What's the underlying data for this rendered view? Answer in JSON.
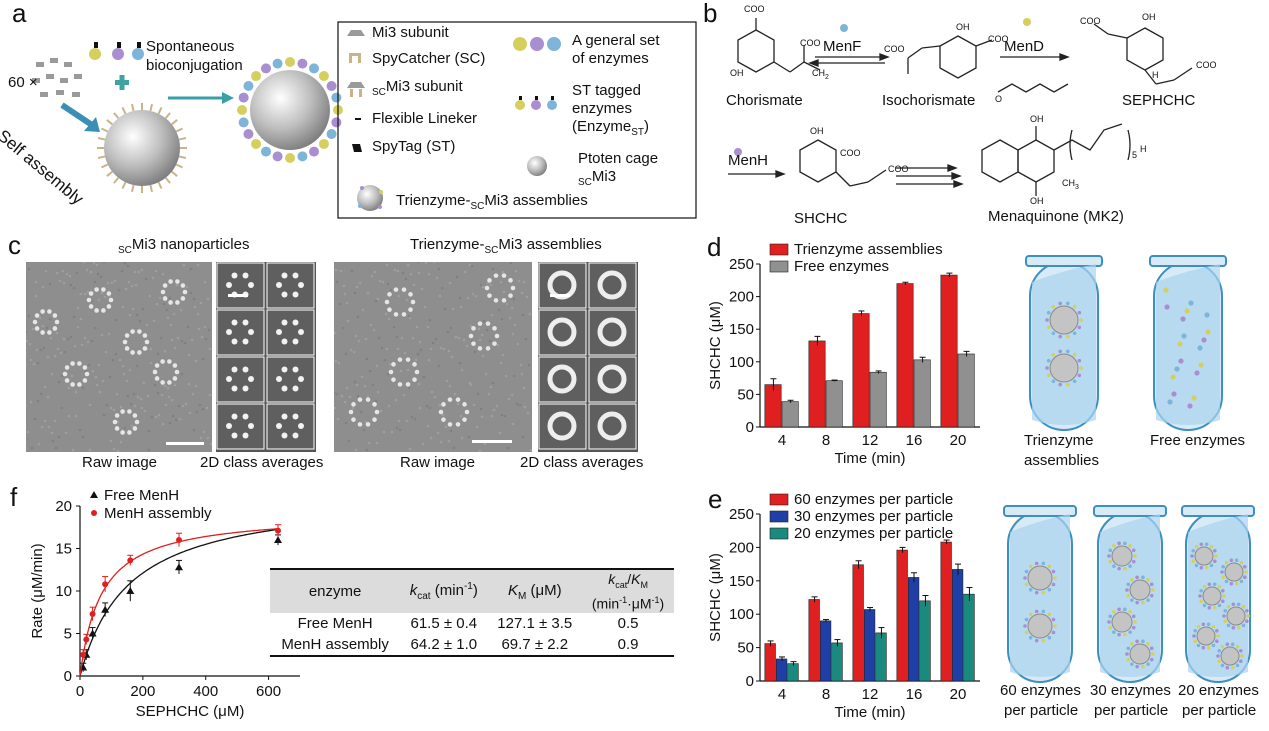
{
  "panel_labels": {
    "a": "a",
    "b": "b",
    "c": "c",
    "d": "d",
    "e": "e",
    "f": "f"
  },
  "panel_a": {
    "count_label": "60 ×",
    "self_assembly": "Self assembly",
    "bioconj_1": "Spontaneous",
    "bioconj_2": "bioconjugation",
    "legend": {
      "mi3_subunit": "Mi3 subunit",
      "spycatcher": "SpyCatcher (SC)",
      "sc_mi3_subunit_pre": "SC",
      "sc_mi3_subunit": "Mi3 subunit",
      "linker": "Flexible Lineker",
      "spytag": "SpyTag (ST)",
      "enzymes_1": "A general set",
      "enzymes_2": "of enzymes",
      "st_tagged_1": "ST tagged",
      "st_tagged_2": "enzymes",
      "st_tagged_3": "(Enzyme",
      "st_tagged_sub": "ST",
      "st_tagged_4": ")",
      "cage_1": "Ptoten cage",
      "cage_sub": "SC",
      "cage_2": "Mi3",
      "trienzyme_pre": "Trienzyme-",
      "trienzyme_sub": "SC",
      "trienzyme_post": "Mi3 assemblies"
    }
  },
  "panel_b": {
    "menf": "MenF",
    "mend": "MenD",
    "menh": "MenH",
    "chorismate": "Chorismate",
    "isochorismate": "Isochorismate",
    "sephchc": "SEPHCHC",
    "shchc": "SHCHC",
    "menaquinone": "Menaquinone (MK2)",
    "coo": "COO",
    "oh": "OH",
    "h": "H",
    "ch3": "CH",
    "ch3_sub": "3",
    "ch2": "CH",
    "ch2_sub": "2",
    "repeat_sub": "5",
    "o": "O"
  },
  "panel_c": {
    "left_title_sub": "SC",
    "left_title": "Mi3 nanoparticles",
    "right_title_pre": "Trienzyme-",
    "right_title_sub": "SC",
    "right_title": "Mi3 assemblies",
    "raw_image": "Raw image",
    "class_averages": "2D class averages"
  },
  "panel_d_tubes": {
    "tube1_1": "Trienzyme",
    "tube1_2": "assemblies",
    "tube2": "Free enzymes"
  },
  "panel_e_tubes": {
    "t1_1": "60 enzymes",
    "t1_2": "per particle",
    "t2_1": "30 enzymes",
    "t2_2": "per particle",
    "t3_1": "20 enzymes",
    "t3_2": "per particle"
  },
  "panel_f_table": {
    "headers": {
      "enzyme": "enzyme",
      "kcat": "k",
      "kcat_sub": "cat",
      "kcat_unit": " (min",
      "kcat_exp": "-1",
      "kcat_close": ")",
      "km": "K",
      "km_sub": "M",
      "km_unit": " (μM)",
      "ratio_k": "k",
      "ratio_cat": "cat",
      "ratio_slash": "/",
      "ratio_K": "K",
      "ratio_M": "M",
      "ratio_unit": "(min",
      "ratio_unit_exp1": "-1",
      "ratio_unit_mid": "·μM",
      "ratio_unit_exp2": "-1",
      "ratio_unit_close": ")"
    },
    "rows": [
      {
        "enzyme": "Free MenH",
        "kcat": "61.5 ± 0.4",
        "km": "127.1 ± 3.5",
        "ratio": "0.5"
      },
      {
        "enzyme": "MenH assembly",
        "kcat": "64.2 ± 1.0",
        "km": "69.7 ± 2.2",
        "ratio": "0.9"
      }
    ]
  },
  "colors": {
    "red": "#e02020",
    "gray": "#909090",
    "blue": "#1f3fa6",
    "teal": "#1a8a7e",
    "black": "#111111"
  },
  "chart_data": [
    {
      "id": "d",
      "type": "bar",
      "categories": [
        "4",
        "8",
        "12",
        "16",
        "20"
      ],
      "series": [
        {
          "name": "Trienzyme assemblies",
          "color": "#e02020",
          "values": [
            65,
            132,
            174,
            220,
            233
          ],
          "errors": [
            9,
            7,
            4,
            2,
            3
          ]
        },
        {
          "name": "Free enzymes",
          "color": "#909090",
          "values": [
            39,
            71,
            84,
            103,
            112
          ],
          "errors": [
            2,
            1,
            2,
            4,
            4
          ]
        }
      ],
      "xlabel": "Time (min)",
      "ylabel": "SHCHC (μM)",
      "ylim": [
        0,
        250
      ],
      "yticks": [
        0,
        50,
        100,
        150,
        200,
        250
      ],
      "legend": "top-left"
    },
    {
      "id": "e",
      "type": "bar",
      "categories": [
        "4",
        "8",
        "12",
        "16",
        "20"
      ],
      "series": [
        {
          "name": "60 enzymes per particle",
          "color": "#e02020",
          "values": [
            56,
            122,
            174,
            196,
            208
          ],
          "errors": [
            4,
            4,
            6,
            4,
            3
          ]
        },
        {
          "name": "30 enzymes per particle",
          "color": "#1f3fa6",
          "values": [
            33,
            90,
            107,
            155,
            167
          ],
          "errors": [
            3,
            2,
            3,
            7,
            8
          ]
        },
        {
          "name": "20 enzymes per particle",
          "color": "#1a8a7e",
          "values": [
            26,
            57,
            72,
            120,
            130
          ],
          "errors": [
            3,
            5,
            8,
            8,
            10
          ]
        }
      ],
      "xlabel": "Time (min)",
      "ylabel": "SHCHC (μM)",
      "ylim": [
        0,
        250
      ],
      "yticks": [
        0,
        50,
        100,
        150,
        200,
        250
      ],
      "legend": "top-left"
    },
    {
      "id": "f",
      "type": "scatter",
      "series": [
        {
          "name": "Free MenH",
          "color": "#111111",
          "marker": "triangle",
          "x": [
            10,
            20,
            40,
            80,
            160,
            315,
            630
          ],
          "y": [
            1.0,
            2.5,
            5.0,
            7.8,
            10.0,
            12.8,
            16.0
          ],
          "errors": [
            0.5,
            0.6,
            0.7,
            0.8,
            1.2,
            0.8,
            0.6
          ]
        },
        {
          "name": "MenH assembly",
          "color": "#e02020",
          "marker": "circle",
          "x": [
            10,
            20,
            40,
            80,
            160,
            315,
            630
          ],
          "y": [
            2.5,
            4.3,
            7.3,
            10.8,
            13.6,
            16.0,
            17.1
          ],
          "errors": [
            0.6,
            0.6,
            0.8,
            0.9,
            0.6,
            0.8,
            0.7
          ]
        }
      ],
      "xlabel": "SEPHCHC (μM)",
      "ylabel": "Rate (μM/min)",
      "xlim": [
        0,
        700
      ],
      "ylim": [
        0,
        20
      ],
      "xticks": [
        0,
        200,
        400,
        600
      ],
      "yticks": [
        0,
        5,
        10,
        15,
        20
      ],
      "legend": "top-left"
    }
  ]
}
